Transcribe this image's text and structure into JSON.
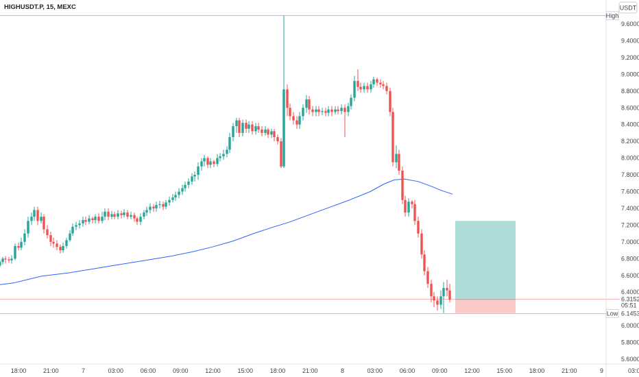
{
  "header": {
    "symbol_title": "HIGHUSDT.P, 15, MEXC",
    "currency_button": "USDT"
  },
  "chart_data": {
    "type": "candlestick",
    "x_tick_labels": [
      "18:00",
      "21:00",
      "7",
      "03:00",
      "06:00",
      "09:00",
      "12:00",
      "15:00",
      "18:00",
      "21:00",
      "8",
      "03:00",
      "06:00",
      "09:00",
      "12:00",
      "15:00",
      "18:00",
      "21:00",
      "9",
      "03:0"
    ],
    "y_tick_labels": [
      "9.6000",
      "9.4000",
      "9.2000",
      "9.0000",
      "8.8000",
      "8.6000",
      "8.4000",
      "8.2000",
      "8.0000",
      "7.8000",
      "7.6000",
      "7.4000",
      "7.2000",
      "7.0000",
      "6.8000",
      "6.6000",
      "6.4000",
      "6.2000",
      "6.0000",
      "5.8000",
      "5.6000"
    ],
    "ylim": [
      5.56,
      9.76
    ],
    "high_label": "High",
    "high_value": 9.7,
    "low_label": "Low",
    "low_value": "6.1453",
    "last_price": "6.3152",
    "countdown": "05:51",
    "up_color": "#26a69a",
    "down_color": "#ef5350",
    "ma_color": "#2962ff",
    "moving_average": [
      [
        0,
        6.49
      ],
      [
        20,
        6.51
      ],
      [
        40,
        6.55
      ],
      [
        60,
        6.59
      ],
      [
        80,
        6.61
      ],
      [
        100,
        6.63
      ],
      [
        130,
        6.67
      ],
      [
        160,
        6.71
      ],
      [
        190,
        6.75
      ],
      [
        220,
        6.79
      ],
      [
        250,
        6.83
      ],
      [
        280,
        6.88
      ],
      [
        310,
        6.94
      ],
      [
        340,
        7.01
      ],
      [
        370,
        7.1
      ],
      [
        400,
        7.18
      ],
      [
        420,
        7.23
      ],
      [
        450,
        7.32
      ],
      [
        480,
        7.41
      ],
      [
        510,
        7.5
      ],
      [
        540,
        7.6
      ],
      [
        560,
        7.69
      ],
      [
        575,
        7.74
      ],
      [
        590,
        7.75
      ],
      [
        610,
        7.72
      ],
      [
        630,
        7.66
      ],
      [
        645,
        7.61
      ],
      [
        660,
        7.57
      ]
    ],
    "position_tool": {
      "entry": 6.3,
      "target": 7.25,
      "stop": 6.15,
      "start": 664,
      "end": 752
    },
    "candles": [
      [
        0,
        6.72,
        6.76,
        6.7,
        6.78
      ],
      [
        4,
        6.76,
        6.8,
        6.73,
        6.82
      ],
      [
        8,
        6.8,
        6.79,
        6.74,
        6.83
      ],
      [
        13,
        6.79,
        6.78,
        6.75,
        6.82
      ],
      [
        17,
        6.78,
        6.8,
        6.74,
        6.84
      ],
      [
        22,
        6.8,
        6.95,
        6.78,
        6.98
      ],
      [
        27,
        6.95,
        6.93,
        6.9,
        6.99
      ],
      [
        31,
        6.93,
        7.0,
        6.9,
        7.05
      ],
      [
        36,
        7.0,
        7.1,
        6.96,
        7.15
      ],
      [
        41,
        7.1,
        7.25,
        7.05,
        7.3
      ],
      [
        46,
        7.25,
        7.3,
        7.2,
        7.35
      ],
      [
        50,
        7.3,
        7.38,
        7.25,
        7.42
      ],
      [
        55,
        7.38,
        7.25,
        7.2,
        7.42
      ],
      [
        60,
        7.25,
        7.3,
        7.22,
        7.35
      ],
      [
        64,
        7.3,
        7.15,
        7.1,
        7.33
      ],
      [
        69,
        7.15,
        7.08,
        7.04,
        7.2
      ],
      [
        74,
        7.08,
        7.0,
        6.95,
        7.12
      ],
      [
        78,
        7.0,
        6.98,
        6.93,
        7.05
      ],
      [
        83,
        6.98,
        6.94,
        6.9,
        7.02
      ],
      [
        88,
        6.94,
        6.9,
        6.86,
        6.97
      ],
      [
        92,
        6.9,
        6.95,
        6.87,
        6.99
      ],
      [
        97,
        6.95,
        7.02,
        6.92,
        7.05
      ],
      [
        102,
        7.02,
        7.1,
        7.0,
        7.14
      ],
      [
        106,
        7.1,
        7.18,
        7.07,
        7.22
      ],
      [
        111,
        7.18,
        7.2,
        7.14,
        7.24
      ],
      [
        116,
        7.2,
        7.22,
        7.16,
        7.26
      ],
      [
        121,
        7.22,
        7.26,
        7.18,
        7.3
      ],
      [
        125,
        7.26,
        7.24,
        7.2,
        7.3
      ],
      [
        130,
        7.24,
        7.28,
        7.21,
        7.32
      ],
      [
        135,
        7.28,
        7.26,
        7.22,
        7.3
      ],
      [
        139,
        7.26,
        7.3,
        7.22,
        7.33
      ],
      [
        144,
        7.3,
        7.25,
        7.22,
        7.34
      ],
      [
        149,
        7.25,
        7.3,
        7.22,
        7.36
      ],
      [
        153,
        7.3,
        7.36,
        7.26,
        7.4
      ],
      [
        158,
        7.36,
        7.3,
        7.26,
        7.4
      ],
      [
        163,
        7.3,
        7.33,
        7.27,
        7.37
      ],
      [
        167,
        7.33,
        7.3,
        7.27,
        7.36
      ],
      [
        172,
        7.3,
        7.34,
        7.27,
        7.38
      ],
      [
        177,
        7.34,
        7.32,
        7.28,
        7.37
      ],
      [
        181,
        7.32,
        7.35,
        7.29,
        7.39
      ],
      [
        186,
        7.35,
        7.3,
        7.27,
        7.38
      ],
      [
        191,
        7.3,
        7.32,
        7.27,
        7.36
      ],
      [
        196,
        7.32,
        7.28,
        7.24,
        7.35
      ],
      [
        200,
        7.28,
        7.24,
        7.2,
        7.3
      ],
      [
        205,
        7.24,
        7.3,
        7.2,
        7.34
      ],
      [
        210,
        7.3,
        7.35,
        7.27,
        7.38
      ],
      [
        214,
        7.35,
        7.38,
        7.31,
        7.42
      ],
      [
        219,
        7.38,
        7.42,
        7.34,
        7.46
      ],
      [
        224,
        7.42,
        7.4,
        7.36,
        7.45
      ],
      [
        228,
        7.4,
        7.44,
        7.36,
        7.48
      ],
      [
        233,
        7.44,
        7.45,
        7.4,
        7.49
      ],
      [
        238,
        7.45,
        7.42,
        7.38,
        7.48
      ],
      [
        242,
        7.42,
        7.47,
        7.39,
        7.5
      ],
      [
        247,
        7.47,
        7.5,
        7.43,
        7.54
      ],
      [
        252,
        7.5,
        7.53,
        7.47,
        7.57
      ],
      [
        256,
        7.53,
        7.56,
        7.49,
        7.6
      ],
      [
        261,
        7.56,
        7.6,
        7.52,
        7.64
      ],
      [
        266,
        7.6,
        7.64,
        7.56,
        7.68
      ],
      [
        270,
        7.64,
        7.68,
        7.6,
        7.72
      ],
      [
        275,
        7.68,
        7.72,
        7.64,
        7.76
      ],
      [
        280,
        7.72,
        7.78,
        7.68,
        7.82
      ],
      [
        284,
        7.78,
        7.8,
        7.72,
        7.84
      ],
      [
        289,
        7.8,
        7.9,
        7.74,
        7.95
      ],
      [
        294,
        7.9,
        7.96,
        7.85,
        8.0
      ],
      [
        298,
        7.96,
        8.0,
        7.9,
        8.04
      ],
      [
        303,
        8.0,
        7.92,
        7.88,
        8.02
      ],
      [
        307,
        7.92,
        7.96,
        7.88,
        8.0
      ],
      [
        312,
        7.96,
        7.93,
        7.89,
        7.98
      ],
      [
        317,
        7.93,
        8.0,
        7.9,
        8.05
      ],
      [
        321,
        8.0,
        8.02,
        7.96,
        8.06
      ],
      [
        326,
        8.02,
        8.05,
        7.98,
        8.1
      ],
      [
        331,
        8.05,
        8.1,
        8.01,
        8.14
      ],
      [
        335,
        8.1,
        8.25,
        8.06,
        8.3
      ],
      [
        340,
        8.25,
        8.38,
        8.2,
        8.42
      ],
      [
        345,
        8.38,
        8.45,
        8.3,
        8.48
      ],
      [
        349,
        8.45,
        8.3,
        8.25,
        8.48
      ],
      [
        354,
        8.3,
        8.42,
        8.26,
        8.46
      ],
      [
        359,
        8.42,
        8.35,
        8.3,
        8.46
      ],
      [
        363,
        8.35,
        8.4,
        8.3,
        8.44
      ],
      [
        368,
        8.4,
        8.32,
        8.28,
        8.44
      ],
      [
        373,
        8.32,
        8.38,
        8.28,
        8.42
      ],
      [
        377,
        8.38,
        8.34,
        8.3,
        8.42
      ],
      [
        382,
        8.34,
        8.3,
        8.26,
        8.38
      ],
      [
        387,
        8.3,
        8.34,
        8.27,
        8.38
      ],
      [
        391,
        8.34,
        8.28,
        8.24,
        8.36
      ],
      [
        396,
        8.28,
        8.32,
        8.24,
        8.35
      ],
      [
        400,
        8.32,
        8.25,
        8.2,
        8.35
      ],
      [
        405,
        8.25,
        8.2,
        8.16,
        8.28
      ],
      [
        410,
        8.2,
        7.9,
        7.88,
        8.24
      ],
      [
        414,
        7.9,
        8.82,
        7.88,
        9.7
      ],
      [
        419,
        8.82,
        8.6,
        8.5,
        8.88
      ],
      [
        423,
        8.6,
        8.5,
        8.45,
        8.65
      ],
      [
        428,
        8.5,
        8.45,
        8.4,
        8.55
      ],
      [
        433,
        8.45,
        8.4,
        8.35,
        8.5
      ],
      [
        437,
        8.4,
        8.5,
        8.35,
        8.55
      ],
      [
        442,
        8.5,
        8.6,
        8.45,
        8.64
      ],
      [
        447,
        8.6,
        8.7,
        8.54,
        8.75
      ],
      [
        451,
        8.7,
        8.58,
        8.52,
        8.74
      ],
      [
        456,
        8.58,
        8.55,
        8.5,
        8.62
      ],
      [
        461,
        8.55,
        8.58,
        8.5,
        8.62
      ],
      [
        465,
        8.58,
        8.55,
        8.5,
        8.62
      ],
      [
        470,
        8.55,
        8.56,
        8.51,
        8.6
      ],
      [
        475,
        8.56,
        8.54,
        8.5,
        8.6
      ],
      [
        479,
        8.54,
        8.58,
        8.5,
        8.62
      ],
      [
        484,
        8.58,
        8.55,
        8.5,
        8.62
      ],
      [
        489,
        8.55,
        8.58,
        8.52,
        8.62
      ],
      [
        493,
        8.58,
        8.56,
        8.52,
        8.62
      ],
      [
        498,
        8.56,
        8.6,
        8.52,
        8.64
      ],
      [
        503,
        8.6,
        8.55,
        8.25,
        8.64
      ],
      [
        508,
        8.55,
        8.62,
        8.5,
        8.66
      ],
      [
        512,
        8.62,
        8.72,
        8.58,
        8.76
      ],
      [
        517,
        8.72,
        8.92,
        8.68,
        8.98
      ],
      [
        522,
        8.92,
        8.85,
        8.8,
        9.06
      ],
      [
        526,
        8.85,
        8.82,
        8.78,
        8.9
      ],
      [
        531,
        8.82,
        8.86,
        8.78,
        8.9
      ],
      [
        536,
        8.86,
        8.82,
        8.78,
        8.9
      ],
      [
        541,
        8.82,
        8.88,
        8.78,
        8.92
      ],
      [
        545,
        8.88,
        8.94,
        8.84,
        8.97
      ],
      [
        550,
        8.94,
        8.9,
        8.86,
        8.96
      ],
      [
        555,
        8.9,
        8.88,
        8.84,
        8.94
      ],
      [
        559,
        8.88,
        8.86,
        8.82,
        8.92
      ],
      [
        564,
        8.86,
        8.8,
        8.76,
        8.9
      ],
      [
        569,
        8.8,
        8.55,
        8.5,
        8.84
      ],
      [
        573,
        8.55,
        7.95,
        7.9,
        8.6
      ],
      [
        578,
        7.95,
        8.05,
        7.88,
        8.15
      ],
      [
        582,
        8.05,
        7.85,
        7.8,
        8.1
      ],
      [
        587,
        7.85,
        7.5,
        7.45,
        7.9
      ],
      [
        591,
        7.5,
        7.35,
        7.3,
        7.55
      ],
      [
        596,
        7.35,
        7.48,
        7.3,
        7.52
      ],
      [
        601,
        7.48,
        7.45,
        7.4,
        7.5
      ],
      [
        605,
        7.45,
        7.25,
        7.2,
        7.5
      ],
      [
        610,
        7.25,
        7.1,
        7.05,
        7.3
      ],
      [
        615,
        7.1,
        6.85,
        6.8,
        7.15
      ],
      [
        619,
        6.85,
        6.65,
        6.6,
        6.9
      ],
      [
        624,
        6.65,
        6.5,
        6.45,
        6.7
      ],
      [
        629,
        6.5,
        6.35,
        6.28,
        6.55
      ],
      [
        633,
        6.35,
        6.3,
        6.22,
        6.4
      ],
      [
        638,
        6.3,
        6.25,
        6.18,
        6.35
      ],
      [
        643,
        6.25,
        6.35,
        6.2,
        6.42
      ],
      [
        647,
        6.35,
        6.45,
        6.15,
        6.52
      ],
      [
        652,
        6.45,
        6.42,
        6.35,
        6.55
      ],
      [
        656,
        6.42,
        6.31,
        6.28,
        6.5
      ]
    ]
  }
}
